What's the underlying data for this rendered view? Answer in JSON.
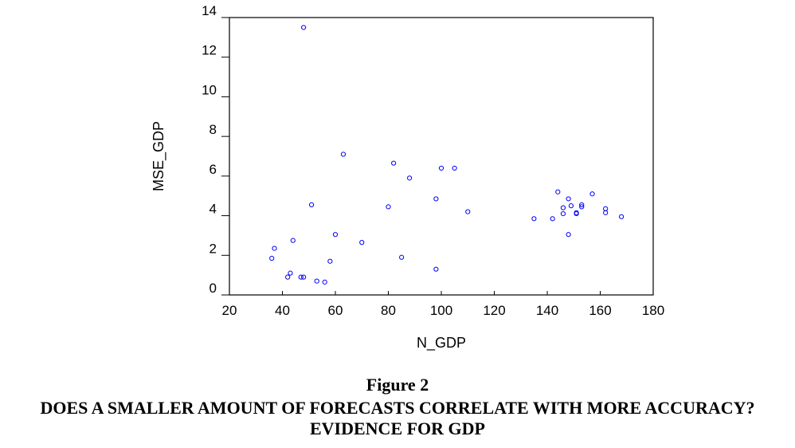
{
  "figure": {
    "number": "Figure 2",
    "title": "DOES A SMALLER AMOUNT OF FORECASTS CORRELATE WITH MORE ACCURACY? EVIDENCE FOR GDP"
  },
  "chart_data": {
    "type": "scatter",
    "xlabel": "N_GDP",
    "ylabel": "MSE_GDP",
    "xlim": [
      20,
      180
    ],
    "ylim": [
      0,
      14
    ],
    "xticks": [
      20,
      40,
      60,
      80,
      100,
      120,
      140,
      160,
      180
    ],
    "yticks": [
      0,
      2,
      4,
      6,
      8,
      10,
      12,
      14
    ],
    "marker_color": "#0000ff",
    "grid": false,
    "points": [
      {
        "x": 48,
        "y": 13.5
      },
      {
        "x": 63,
        "y": 7.1
      },
      {
        "x": 82,
        "y": 6.65
      },
      {
        "x": 100,
        "y": 6.4
      },
      {
        "x": 105,
        "y": 6.4
      },
      {
        "x": 88,
        "y": 5.9
      },
      {
        "x": 98,
        "y": 4.85
      },
      {
        "x": 51,
        "y": 4.55
      },
      {
        "x": 80,
        "y": 4.45
      },
      {
        "x": 110,
        "y": 4.2
      },
      {
        "x": 60,
        "y": 3.05
      },
      {
        "x": 44,
        "y": 2.75
      },
      {
        "x": 70,
        "y": 2.65
      },
      {
        "x": 37,
        "y": 2.35
      },
      {
        "x": 36,
        "y": 1.85
      },
      {
        "x": 85,
        "y": 1.9
      },
      {
        "x": 58,
        "y": 1.7
      },
      {
        "x": 98,
        "y": 1.3
      },
      {
        "x": 43,
        "y": 1.1
      },
      {
        "x": 42,
        "y": 0.9
      },
      {
        "x": 47,
        "y": 0.9
      },
      {
        "x": 48,
        "y": 0.9
      },
      {
        "x": 53,
        "y": 0.7
      },
      {
        "x": 56,
        "y": 0.65
      },
      {
        "x": 135,
        "y": 3.85
      },
      {
        "x": 142,
        "y": 3.85
      },
      {
        "x": 144,
        "y": 5.2
      },
      {
        "x": 146,
        "y": 4.4
      },
      {
        "x": 146,
        "y": 4.1
      },
      {
        "x": 148,
        "y": 4.85
      },
      {
        "x": 148,
        "y": 3.05
      },
      {
        "x": 149,
        "y": 4.5
      },
      {
        "x": 151,
        "y": 4.1
      },
      {
        "x": 151,
        "y": 4.15
      },
      {
        "x": 153,
        "y": 4.55
      },
      {
        "x": 153,
        "y": 4.45
      },
      {
        "x": 157,
        "y": 5.1
      },
      {
        "x": 162,
        "y": 4.35
      },
      {
        "x": 162,
        "y": 4.15
      },
      {
        "x": 168,
        "y": 3.95
      }
    ]
  }
}
